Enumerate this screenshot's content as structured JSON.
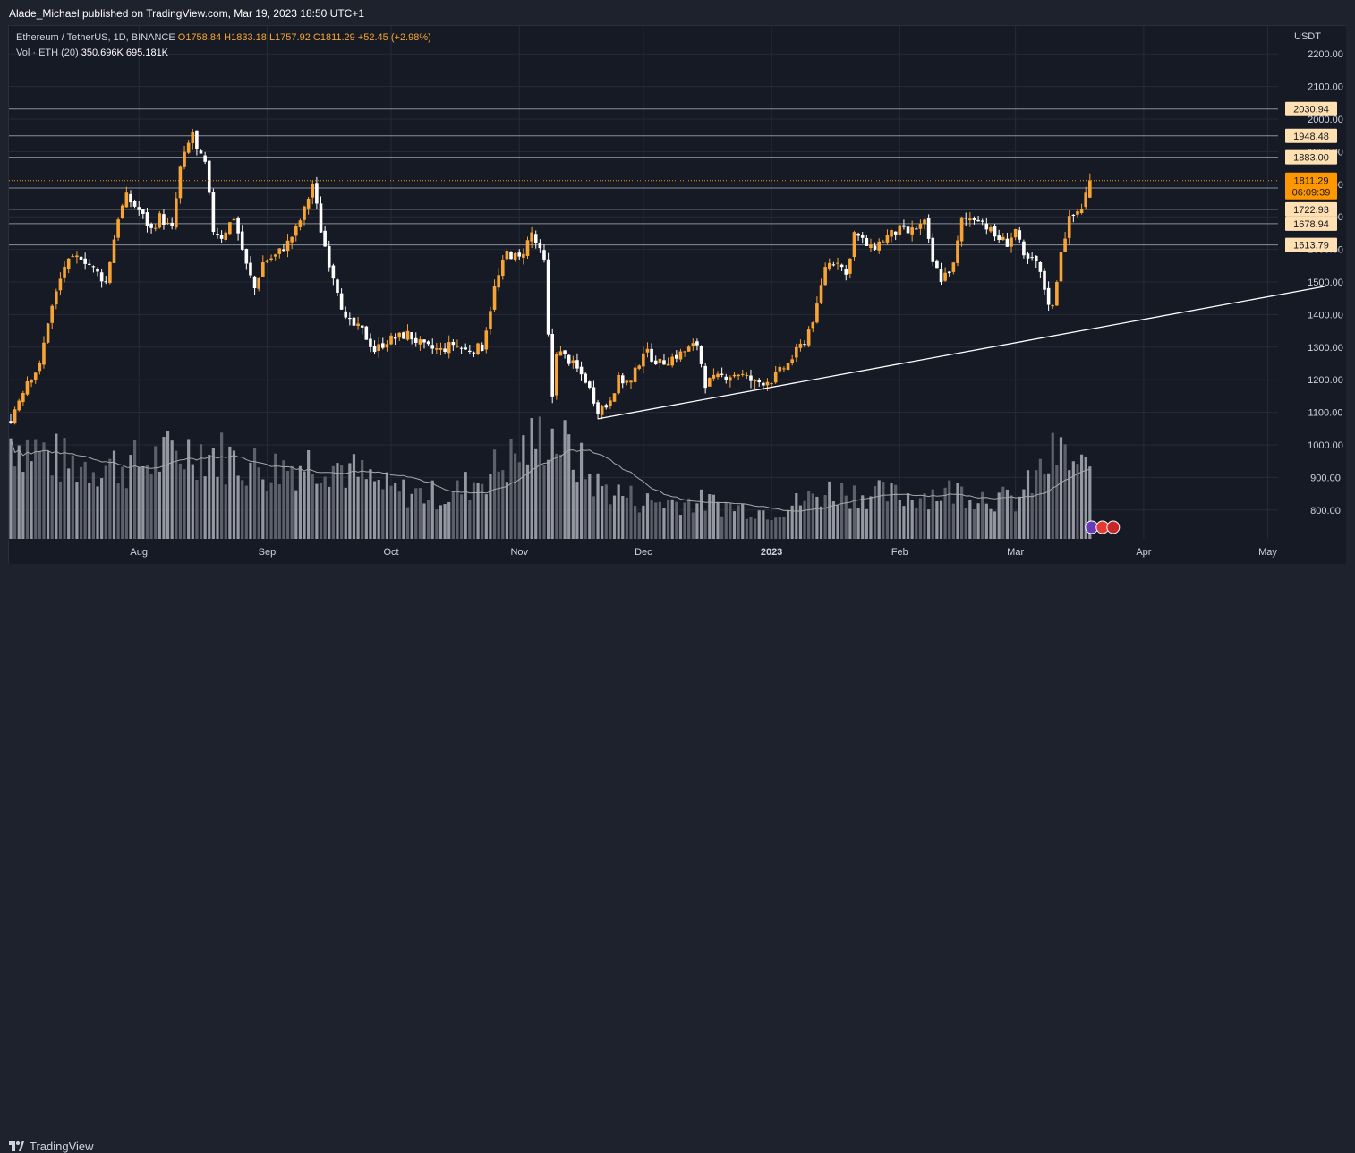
{
  "header": {
    "publisher": "Alade_Michael published on TradingView.com, Mar 19, 2023 18:50 UTC+1"
  },
  "legend": {
    "symbol": "Ethereum / TetherUS, 1D, BINANCE",
    "open": "O1758.84",
    "high": "H1833.18",
    "low": "L1757.92",
    "close": "C1811.29",
    "change": "+52.45 (+2.98%)",
    "volume_label": "Vol · ETH (20)",
    "volume_value": "350.696K",
    "volume_ma": "695.181K"
  },
  "footer": {
    "brand": "TradingView"
  },
  "colors": {
    "background": "#161a25",
    "bullish": "#f7a434",
    "bearish": "#ffffff",
    "grid": "#262b38",
    "level_line": "#8a8e99",
    "price_tag": "#ffe0b2",
    "current_price_tag": "#ff9800",
    "volume_ma": "#a8a8a8",
    "trendline": "#ffffff"
  },
  "chart_data": {
    "type": "candlestick",
    "title": "Ethereum / TetherUS, 1D, BINANCE",
    "y_unit": "USDT",
    "ylim": [
      760,
      2280
    ],
    "y_ticks": [
      "800.00",
      "900.00",
      "1000.00",
      "1100.00",
      "1200.00",
      "1300.00",
      "1400.00",
      "1500.00",
      "1600.00",
      "1700.00",
      "1800.00",
      "1900.00",
      "2000.00",
      "2100.00",
      "2200.00"
    ],
    "x_ticks": [
      "Aug",
      "Sep",
      "Oct",
      "Nov",
      "Dec",
      "2023",
      "Feb",
      "Mar",
      "Apr",
      "May"
    ],
    "x_tick_dates": [
      "2022-08-01",
      "2022-09-01",
      "2022-10-01",
      "2022-11-01",
      "2022-12-01",
      "2023-01-01",
      "2023-02-01",
      "2023-03-01",
      "2023-04-01",
      "2023-05-01"
    ],
    "start_date": "2022-07-01",
    "end_date": "2023-03-19",
    "price_anchors": [
      [
        "2022-07-01",
        1080
      ],
      [
        "2022-07-05",
        1200
      ],
      [
        "2022-07-08",
        1240
      ],
      [
        "2022-07-10",
        1380
      ],
      [
        "2022-07-14",
        1550
      ],
      [
        "2022-07-18",
        1580
      ],
      [
        "2022-07-21",
        1540
      ],
      [
        "2022-07-24",
        1500
      ],
      [
        "2022-07-27",
        1700
      ],
      [
        "2022-07-29",
        1760
      ],
      [
        "2022-08-01",
        1720
      ],
      [
        "2022-08-04",
        1660
      ],
      [
        "2022-08-06",
        1700
      ],
      [
        "2022-08-09",
        1660
      ],
      [
        "2022-08-11",
        1850
      ],
      [
        "2022-08-14",
        1960
      ],
      [
        "2022-08-15",
        1900
      ],
      [
        "2022-08-17",
        1860
      ],
      [
        "2022-08-19",
        1660
      ],
      [
        "2022-08-21",
        1640
      ],
      [
        "2022-08-24",
        1700
      ],
      [
        "2022-08-27",
        1550
      ],
      [
        "2022-08-29",
        1480
      ],
      [
        "2022-08-31",
        1560
      ],
      [
        "2022-09-03",
        1580
      ],
      [
        "2022-09-06",
        1620
      ],
      [
        "2022-09-08",
        1660
      ],
      [
        "2022-09-10",
        1720
      ],
      [
        "2022-09-12",
        1800
      ],
      [
        "2022-09-14",
        1660
      ],
      [
        "2022-09-16",
        1560
      ],
      [
        "2022-09-18",
        1480
      ],
      [
        "2022-09-20",
        1380
      ],
      [
        "2022-09-24",
        1350
      ],
      [
        "2022-09-27",
        1290
      ],
      [
        "2022-09-30",
        1320
      ],
      [
        "2022-10-05",
        1340
      ],
      [
        "2022-10-09",
        1300
      ],
      [
        "2022-10-13",
        1290
      ],
      [
        "2022-10-16",
        1310
      ],
      [
        "2022-10-19",
        1290
      ],
      [
        "2022-10-23",
        1300
      ],
      [
        "2022-10-26",
        1480
      ],
      [
        "2022-10-29",
        1590
      ],
      [
        "2022-11-01",
        1570
      ],
      [
        "2022-11-04",
        1650
      ],
      [
        "2022-11-07",
        1560
      ],
      [
        "2022-11-08",
        1330
      ],
      [
        "2022-11-09",
        1150
      ],
      [
        "2022-11-10",
        1290
      ],
      [
        "2022-11-13",
        1260
      ],
      [
        "2022-11-17",
        1200
      ],
      [
        "2022-11-20",
        1110
      ],
      [
        "2022-11-22",
        1120
      ],
      [
        "2022-11-25",
        1200
      ],
      [
        "2022-11-28",
        1190
      ],
      [
        "2022-12-01",
        1290
      ],
      [
        "2022-12-05",
        1250
      ],
      [
        "2022-12-10",
        1280
      ],
      [
        "2022-12-14",
        1310
      ],
      [
        "2022-12-16",
        1190
      ],
      [
        "2022-12-20",
        1210
      ],
      [
        "2022-12-24",
        1220
      ],
      [
        "2022-12-28",
        1190
      ],
      [
        "2023-01-01",
        1200
      ],
      [
        "2023-01-05",
        1250
      ],
      [
        "2023-01-09",
        1320
      ],
      [
        "2023-01-12",
        1420
      ],
      [
        "2023-01-14",
        1550
      ],
      [
        "2023-01-17",
        1570
      ],
      [
        "2023-01-19",
        1520
      ],
      [
        "2023-01-21",
        1650
      ],
      [
        "2023-01-25",
        1600
      ],
      [
        "2023-01-29",
        1640
      ],
      [
        "2023-02-01",
        1660
      ],
      [
        "2023-02-03",
        1650
      ],
      [
        "2023-02-07",
        1680
      ],
      [
        "2023-02-09",
        1560
      ],
      [
        "2023-02-11",
        1510
      ],
      [
        "2023-02-14",
        1550
      ],
      [
        "2023-02-16",
        1690
      ],
      [
        "2023-02-20",
        1700
      ],
      [
        "2023-02-24",
        1640
      ],
      [
        "2023-02-27",
        1620
      ],
      [
        "2023-03-01",
        1660
      ],
      [
        "2023-03-03",
        1570
      ],
      [
        "2023-03-06",
        1560
      ],
      [
        "2023-03-09",
        1440
      ],
      [
        "2023-03-10",
        1420
      ],
      [
        "2023-03-12",
        1600
      ],
      [
        "2023-03-14",
        1690
      ],
      [
        "2023-03-17",
        1730
      ],
      [
        "2023-03-18",
        1770
      ],
      [
        "2023-03-19",
        1811
      ]
    ],
    "last_candle": {
      "open": 1758.84,
      "high": 1833.18,
      "low": 1757.92,
      "close": 1811.29
    },
    "horizontal_levels": [
      {
        "label": "2030.94",
        "value": 2030.94
      },
      {
        "label": "1948.48",
        "value": 1948.48
      },
      {
        "label": "1883.00",
        "value": 1883.0
      },
      {
        "label": "1788.41",
        "value": 1788.41
      },
      {
        "label": "1722.93",
        "value": 1722.93
      },
      {
        "label": "1678.94",
        "value": 1678.94
      },
      {
        "label": "1613.79",
        "value": 1613.79
      }
    ],
    "current_price": {
      "label": "1811.29",
      "value": 1811.29,
      "countdown": "06:09:39"
    },
    "trendline": [
      [
        "2022-11-20",
        1080
      ],
      [
        "2023-05-15",
        1487
      ]
    ],
    "volume": {
      "label": "Vol · ETH (20)",
      "last": "350.696K",
      "ma": "695.181K",
      "relative_level": [
        [
          "2022-07-01",
          0.95
        ],
        [
          "2022-07-15",
          0.7
        ],
        [
          "2022-08-01",
          0.7
        ],
        [
          "2022-08-15",
          0.85
        ],
        [
          "2022-09-01",
          0.65
        ],
        [
          "2022-09-15",
          0.75
        ],
        [
          "2022-10-01",
          0.45
        ],
        [
          "2022-10-15",
          0.4
        ],
        [
          "2022-10-28",
          0.7
        ],
        [
          "2022-11-08",
          1.0
        ],
        [
          "2022-11-10",
          0.95
        ],
        [
          "2022-11-20",
          0.5
        ],
        [
          "2022-12-01",
          0.35
        ],
        [
          "2022-12-15",
          0.35
        ],
        [
          "2023-01-01",
          0.25
        ],
        [
          "2023-01-15",
          0.45
        ],
        [
          "2023-02-01",
          0.4
        ],
        [
          "2023-02-15",
          0.45
        ],
        [
          "2023-03-01",
          0.35
        ],
        [
          "2023-03-11",
          0.8
        ],
        [
          "2023-03-19",
          0.6
        ]
      ]
    }
  }
}
